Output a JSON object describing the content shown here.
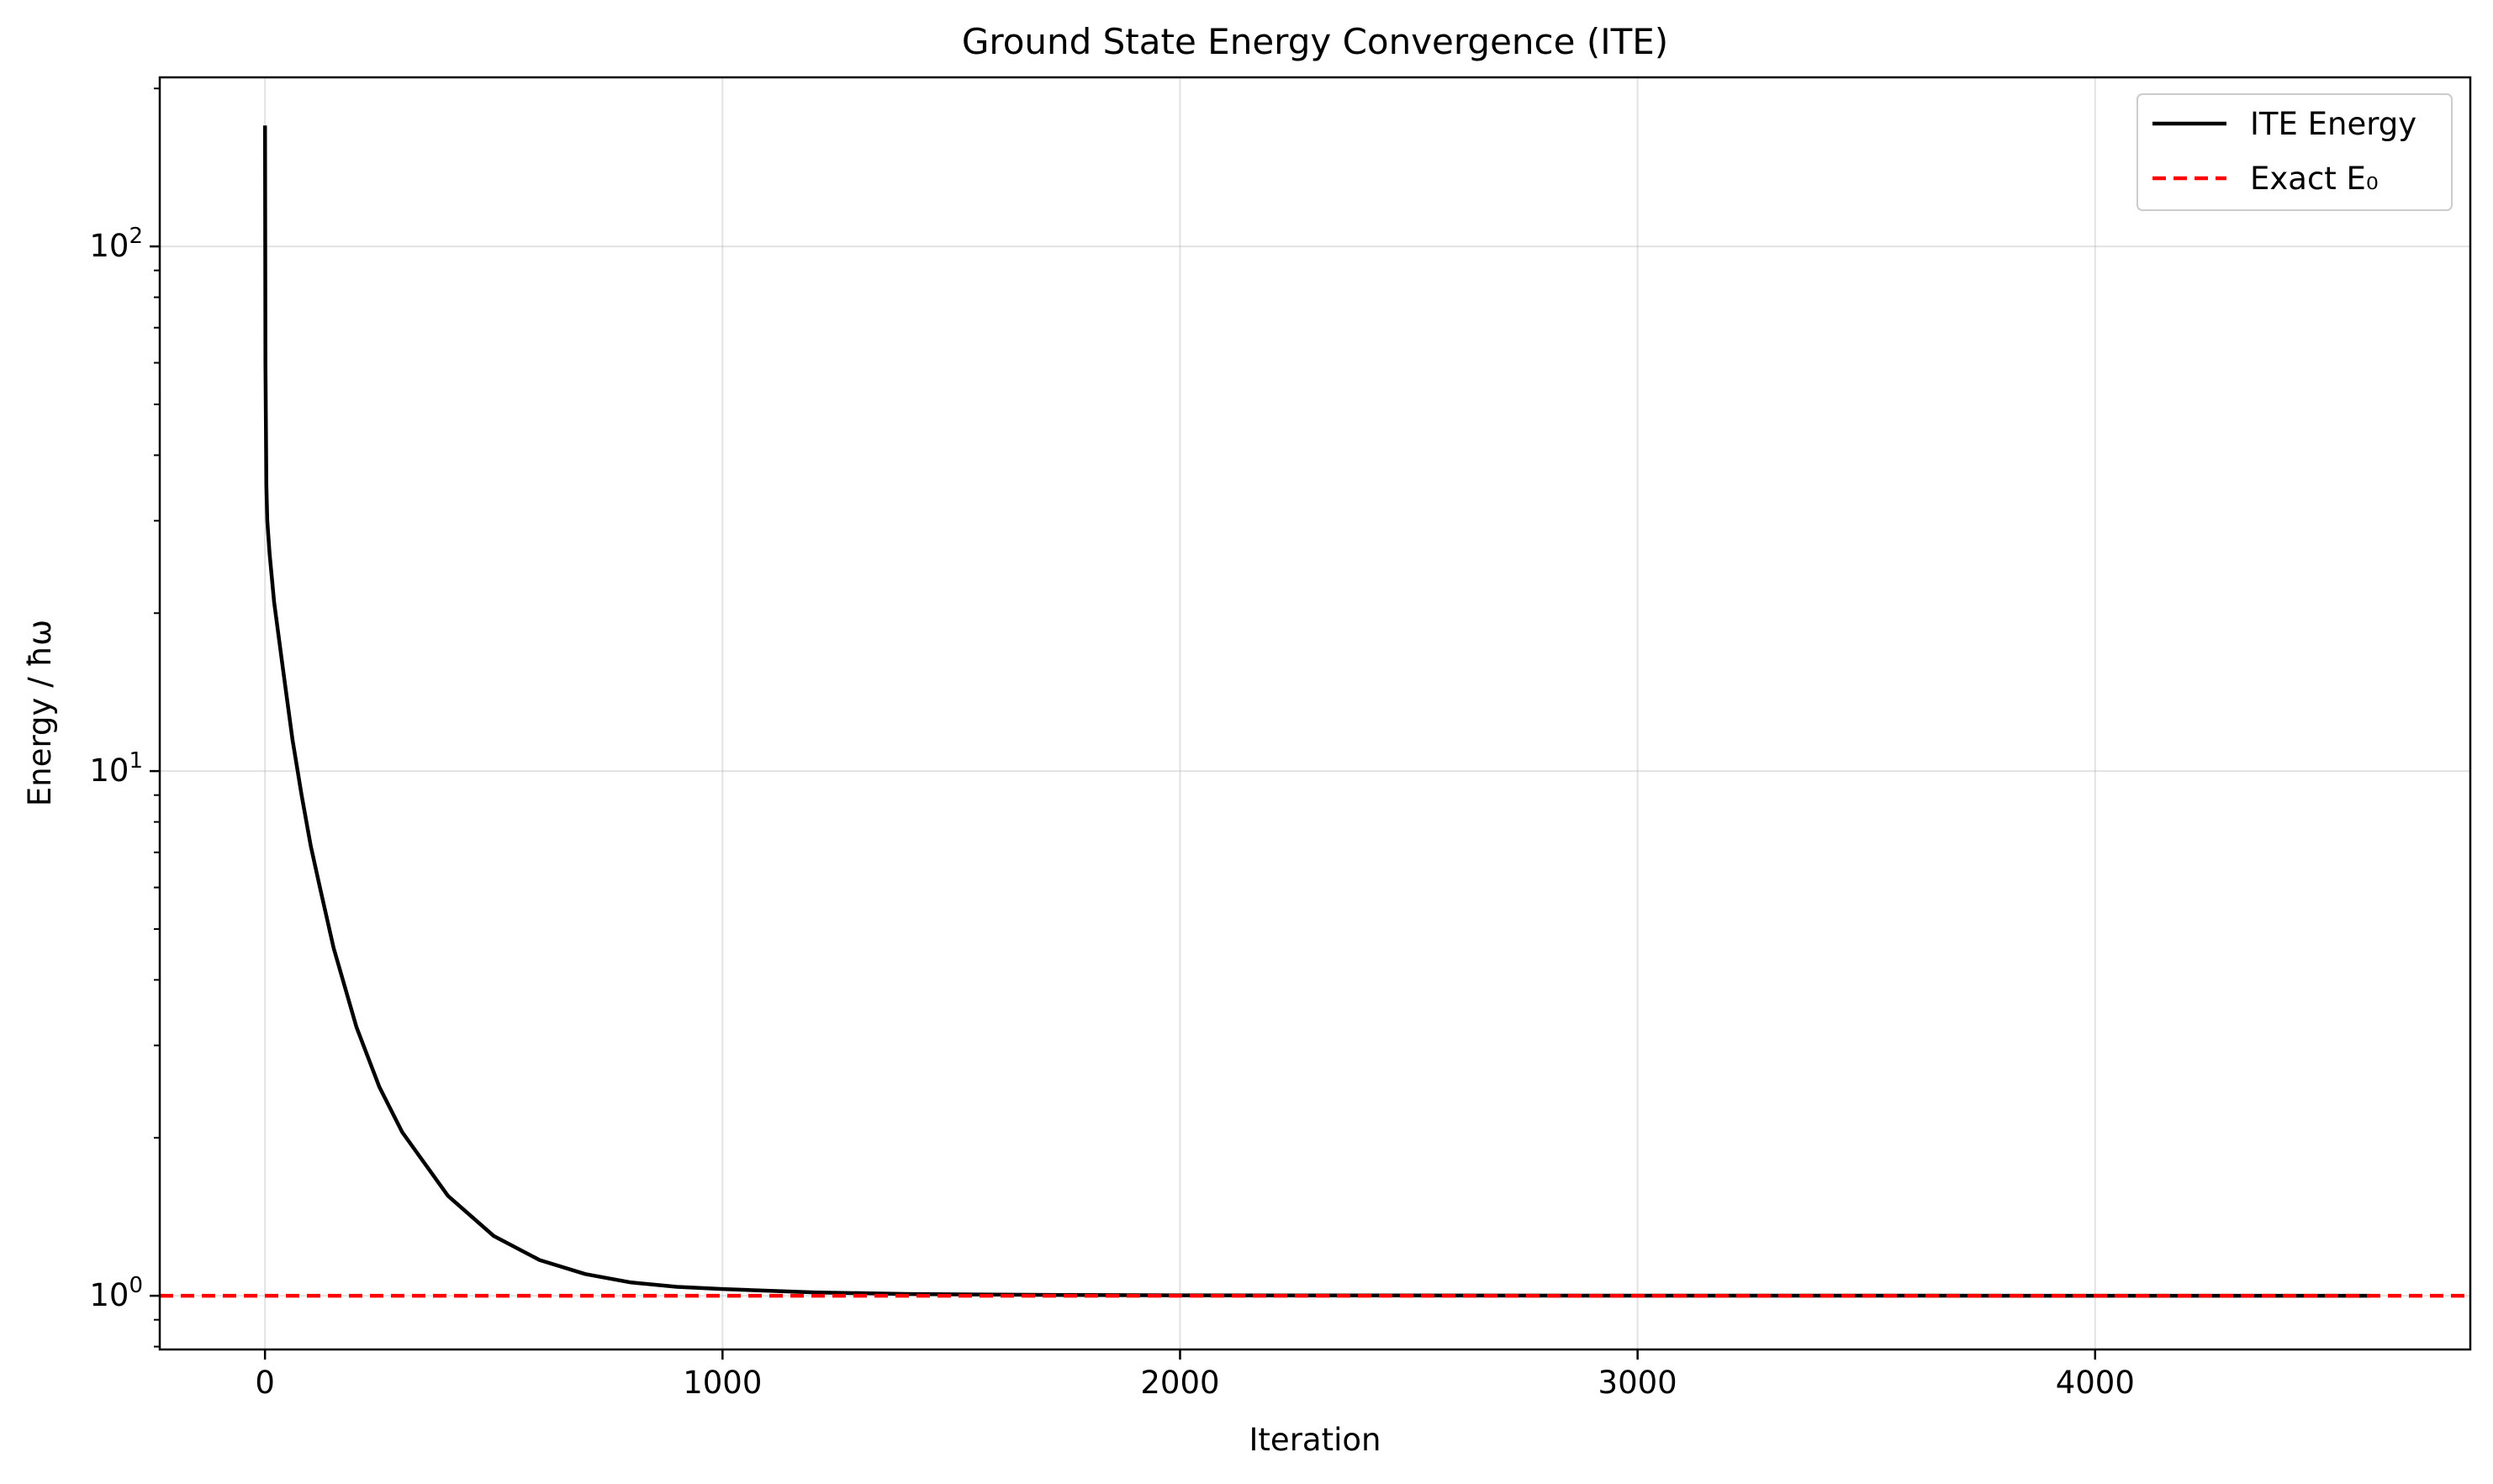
{
  "chart_data": {
    "type": "line",
    "title": "Ground State Energy Convergence (ITE)",
    "xlabel": "Iteration",
    "ylabel": "Energy / ħω",
    "xlim": [
      -230,
      4820
    ],
    "ylim": [
      0.79,
      210
    ],
    "yscale": "log",
    "grid": true,
    "legend_position": "top-right",
    "x_ticks": [
      0,
      1000,
      2000,
      3000,
      4000
    ],
    "x_tick_labels": [
      "0",
      "1000",
      "2000",
      "3000",
      "4000"
    ],
    "y_ticks": [
      {
        "value": 1,
        "base": "10",
        "exp": "0"
      },
      {
        "value": 10,
        "base": "10",
        "exp": "1"
      },
      {
        "value": 100,
        "base": "10",
        "exp": "2"
      }
    ],
    "series": [
      {
        "name": "ITE Energy",
        "color": "#000000",
        "style": "solid",
        "x": [
          0,
          1,
          3,
          5,
          10,
          20,
          40,
          60,
          80,
          100,
          120,
          150,
          200,
          250,
          300,
          400,
          500,
          600,
          700,
          800,
          900,
          1000,
          1200,
          1400,
          1600,
          1800,
          2000,
          3000,
          4000,
          4600
        ],
        "y": [
          170,
          60,
          35,
          30,
          26,
          21,
          15.5,
          11.5,
          9,
          7.2,
          6,
          4.6,
          3.25,
          2.5,
          2.05,
          1.55,
          1.3,
          1.17,
          1.1,
          1.06,
          1.04,
          1.03,
          1.015,
          1.008,
          1.005,
          1.003,
          1.002,
          1.0005,
          1.0001,
          1.0
        ]
      },
      {
        "name": "Exact E₀",
        "color": "#ff0000",
        "style": "dashed",
        "y_constant": 1.0
      }
    ]
  }
}
